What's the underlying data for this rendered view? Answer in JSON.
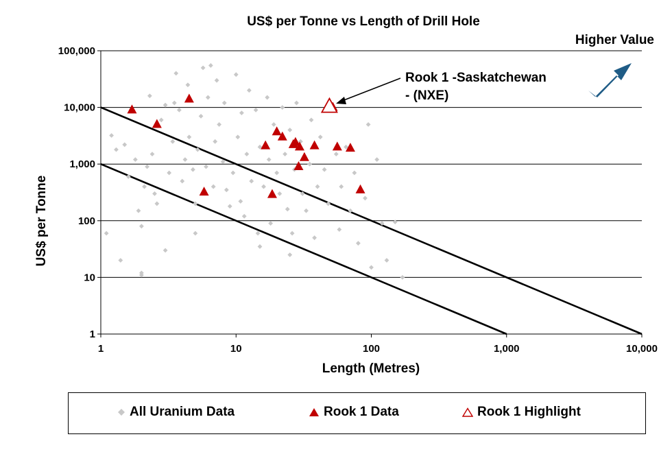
{
  "chart_data": {
    "type": "scatter",
    "title": "US$ per Tonne vs Length of Drill Hole",
    "xlabel": "Length (Metres)",
    "ylabel": "US$ per Tonne",
    "x_scale": "log",
    "y_scale": "log",
    "xlim": [
      1,
      10000
    ],
    "ylim": [
      1,
      100000
    ],
    "x_ticks": [
      "1",
      "10",
      "100",
      "1,000",
      "10,000"
    ],
    "y_ticks": [
      "1",
      "10",
      "100",
      "1,000",
      "10,000",
      "100,000"
    ],
    "grid": "horizontal",
    "legend_position": "bottom",
    "series": [
      {
        "name": "All Uranium Data",
        "marker": "diamond",
        "color": "#c8c8c8",
        "points": [
          [
            1.2,
            3200
          ],
          [
            1.3,
            1800
          ],
          [
            1.5,
            2200
          ],
          [
            1.6,
            600
          ],
          [
            1.8,
            1200
          ],
          [
            1.9,
            150
          ],
          [
            2,
            12
          ],
          [
            2,
            11
          ],
          [
            2,
            80
          ],
          [
            2.1,
            400
          ],
          [
            2.2,
            900
          ],
          [
            2.3,
            16000
          ],
          [
            2.4,
            1500
          ],
          [
            2.5,
            300
          ],
          [
            2.6,
            200
          ],
          [
            2.8,
            6000
          ],
          [
            3,
            11000
          ],
          [
            3.2,
            700
          ],
          [
            3.4,
            2500
          ],
          [
            3.5,
            12000
          ],
          [
            3.6,
            40000
          ],
          [
            3.8,
            9000
          ],
          [
            4,
            500
          ],
          [
            4.2,
            1200
          ],
          [
            4.4,
            25000
          ],
          [
            4.5,
            3000
          ],
          [
            4.8,
            800
          ],
          [
            5,
            200
          ],
          [
            5,
            60
          ],
          [
            5.2,
            1800
          ],
          [
            5.5,
            7000
          ],
          [
            5.7,
            50000
          ],
          [
            6,
            900
          ],
          [
            6.2,
            15000
          ],
          [
            6.5,
            55000
          ],
          [
            6.8,
            400
          ],
          [
            7,
            2500
          ],
          [
            7.2,
            30000
          ],
          [
            7.5,
            5000
          ],
          [
            8,
            1100
          ],
          [
            8.2,
            12000
          ],
          [
            8.5,
            350
          ],
          [
            9,
            180
          ],
          [
            9.5,
            700
          ],
          [
            10,
            38000
          ],
          [
            10.3,
            3000
          ],
          [
            10.8,
            220
          ],
          [
            11,
            8000
          ],
          [
            11.5,
            120
          ],
          [
            12,
            1500
          ],
          [
            12.5,
            20000
          ],
          [
            13,
            500
          ],
          [
            14,
            9000
          ],
          [
            14.5,
            60
          ],
          [
            15,
            2000
          ],
          [
            16,
            400
          ],
          [
            17,
            15000
          ],
          [
            17.5,
            1200
          ],
          [
            18,
            90
          ],
          [
            19,
            5000
          ],
          [
            20,
            700
          ],
          [
            21,
            300
          ],
          [
            22,
            10000
          ],
          [
            23,
            1500
          ],
          [
            24,
            160
          ],
          [
            25,
            4000
          ],
          [
            26,
            60
          ],
          [
            27,
            800
          ],
          [
            28,
            12000
          ],
          [
            30,
            2500
          ],
          [
            31,
            300
          ],
          [
            33,
            150
          ],
          [
            35,
            1000
          ],
          [
            36,
            6000
          ],
          [
            38,
            50
          ],
          [
            40,
            400
          ],
          [
            42,
            3000
          ],
          [
            45,
            800
          ],
          [
            48,
            200
          ],
          [
            50,
            9000
          ],
          [
            55,
            1500
          ],
          [
            58,
            70
          ],
          [
            60,
            400
          ],
          [
            65,
            2000
          ],
          [
            70,
            150
          ],
          [
            75,
            700
          ],
          [
            80,
            40
          ],
          [
            90,
            250
          ],
          [
            95,
            5000
          ],
          [
            100,
            15
          ],
          [
            110,
            1200
          ],
          [
            120,
            90
          ],
          [
            130,
            20
          ],
          [
            150,
            95
          ],
          [
            170,
            10
          ],
          [
            3,
            30
          ],
          [
            1.4,
            20
          ],
          [
            15,
            35
          ],
          [
            25,
            25
          ],
          [
            1.1,
            60
          ]
        ]
      },
      {
        "name": "Rook 1 Data",
        "marker": "triangle",
        "color": "#c00000",
        "points": [
          [
            1.7,
            9000
          ],
          [
            2.6,
            5000
          ],
          [
            4.5,
            14000
          ],
          [
            5.8,
            320
          ],
          [
            16.5,
            2100
          ],
          [
            18.5,
            290
          ],
          [
            20,
            3700
          ],
          [
            22,
            3000
          ],
          [
            26.5,
            2200
          ],
          [
            27.5,
            2400
          ],
          [
            29,
            900
          ],
          [
            29.5,
            2000
          ],
          [
            32,
            1300
          ],
          [
            38,
            2100
          ],
          [
            52,
            10000
          ],
          [
            56,
            2000
          ],
          [
            70,
            1900
          ],
          [
            83,
            350
          ]
        ]
      },
      {
        "name": "Rook 1 Highlight",
        "marker": "triangle-open",
        "color": "#c00000",
        "points": [
          [
            49,
            10000
          ]
        ]
      }
    ],
    "reference_lines": [
      {
        "from": [
          1,
          10000
        ],
        "to": [
          10000,
          1
        ]
      },
      {
        "from": [
          1,
          1000
        ],
        "to": [
          1000,
          1
        ]
      }
    ],
    "annotations": [
      {
        "lines": [
          "Rook 1 -Saskatchewan",
          "- (NXE)"
        ],
        "points_to": [
          52,
          10000
        ]
      },
      {
        "text": "Higher Value",
        "arrow": "up-right",
        "arrow_color": "#1f5c86"
      }
    ]
  }
}
